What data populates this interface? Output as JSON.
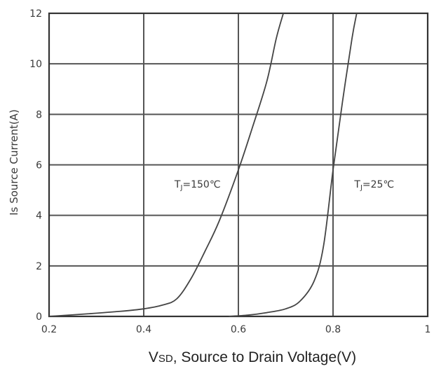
{
  "chart_data": {
    "type": "line",
    "title": "",
    "xlabel": "VSD, Source to Drain Voltage(V)",
    "xlabel_parts": {
      "main": "V",
      "sub": "SD",
      "rest": ", Source to Drain Voltage(V)"
    },
    "ylabel": "Is Source Current(A)",
    "xlim": [
      0.2,
      1.0
    ],
    "ylim": [
      0,
      12
    ],
    "x_ticks": [
      0.2,
      0.4,
      0.6,
      0.8,
      1.0
    ],
    "x_tick_labels": [
      "0.2",
      "0.4",
      "0.6",
      "0.8",
      "1"
    ],
    "y_ticks": [
      0,
      2,
      4,
      6,
      8,
      10,
      12
    ],
    "y_tick_labels": [
      "0",
      "2",
      "4",
      "6",
      "8",
      "10",
      "12"
    ],
    "grid": true,
    "legend": "none",
    "series": [
      {
        "label_text": "TJ=150℃",
        "label_parts": {
          "main": "T",
          "sub": "J",
          "rest": "=150℃"
        },
        "label_anchor": {
          "x": 0.465,
          "y": 5.1
        },
        "color": "#444444",
        "points": [
          {
            "x": 0.2,
            "y": 0.0
          },
          {
            "x": 0.28,
            "y": 0.1
          },
          {
            "x": 0.35,
            "y": 0.2
          },
          {
            "x": 0.4,
            "y": 0.3
          },
          {
            "x": 0.44,
            "y": 0.45
          },
          {
            "x": 0.47,
            "y": 0.7
          },
          {
            "x": 0.5,
            "y": 1.5
          },
          {
            "x": 0.53,
            "y": 2.6
          },
          {
            "x": 0.56,
            "y": 3.8
          },
          {
            "x": 0.6,
            "y": 5.8
          },
          {
            "x": 0.63,
            "y": 7.5
          },
          {
            "x": 0.66,
            "y": 9.3
          },
          {
            "x": 0.68,
            "y": 11.0
          },
          {
            "x": 0.695,
            "y": 12.0
          }
        ]
      },
      {
        "label_text": "TJ=25℃",
        "label_parts": {
          "main": "T",
          "sub": "J",
          "rest": "=25℃"
        },
        "label_anchor": {
          "x": 0.845,
          "y": 5.1
        },
        "color": "#444444",
        "points": [
          {
            "x": 0.58,
            "y": 0.0
          },
          {
            "x": 0.62,
            "y": 0.05
          },
          {
            "x": 0.66,
            "y": 0.15
          },
          {
            "x": 0.7,
            "y": 0.3
          },
          {
            "x": 0.73,
            "y": 0.6
          },
          {
            "x": 0.76,
            "y": 1.4
          },
          {
            "x": 0.78,
            "y": 2.8
          },
          {
            "x": 0.8,
            "y": 5.8
          },
          {
            "x": 0.82,
            "y": 8.5
          },
          {
            "x": 0.84,
            "y": 11.0
          },
          {
            "x": 0.85,
            "y": 12.0
          }
        ]
      }
    ]
  }
}
